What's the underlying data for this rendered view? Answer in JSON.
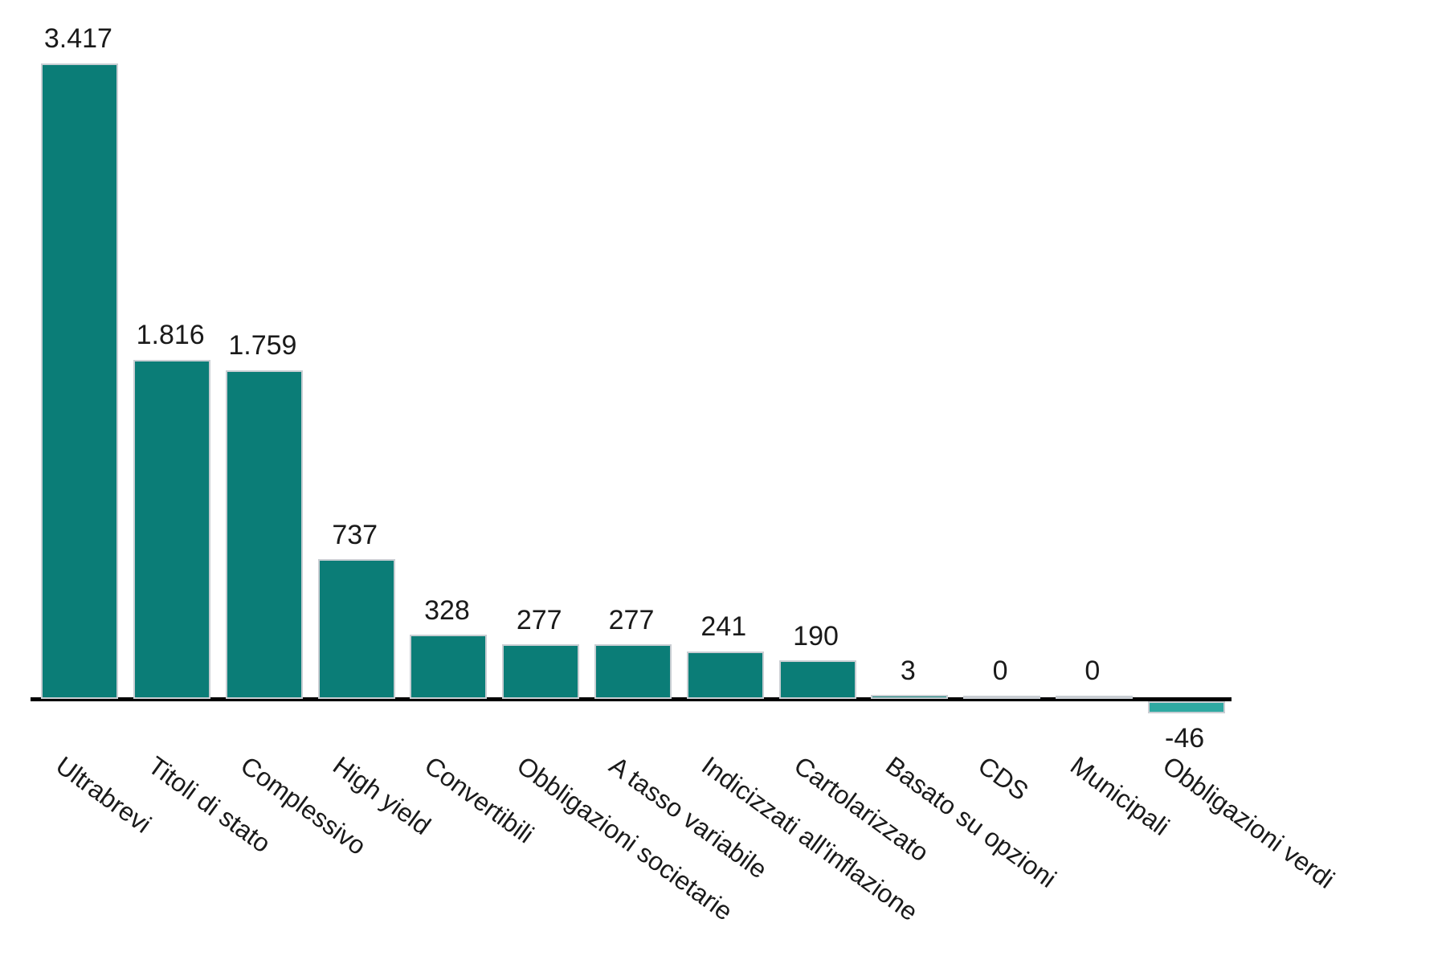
{
  "chart_data": {
    "type": "bar",
    "title": "",
    "xlabel": "",
    "ylabel": "",
    "categories": [
      "Ultrabrevi",
      "Titoli di stato",
      "Complessivo",
      "High yield",
      "Convertibili",
      "Obbligazioni societarie",
      "A tasso variabile",
      "Indicizzati all'inflazione",
      "Cartolarizzato",
      "Basato su opzioni",
      "CDS",
      "Municipali",
      "Obbligazioni verdi"
    ],
    "values": [
      3417,
      1816,
      1759,
      737,
      328,
      277,
      277,
      241,
      190,
      3,
      0,
      0,
      -46
    ],
    "value_labels": [
      "3.417",
      "1.816",
      "1.759",
      "737",
      "328",
      "277",
      "277",
      "241",
      "190",
      "3",
      "0",
      "0",
      "-46"
    ],
    "ylim": [
      -46,
      3417
    ],
    "grid": false,
    "legend": null,
    "layout_hints": {
      "tick_label_rotation_deg": 36,
      "value_labels_position": "above bars (below bar for negative value)"
    },
    "colors": {
      "bar_positive": "#0b7d77",
      "bar_negative": "#2fa9a2",
      "bar_edge": "#c9ced3",
      "axis_line": "#000000",
      "text": "#1a1a1a",
      "background": "#ffffff"
    }
  }
}
